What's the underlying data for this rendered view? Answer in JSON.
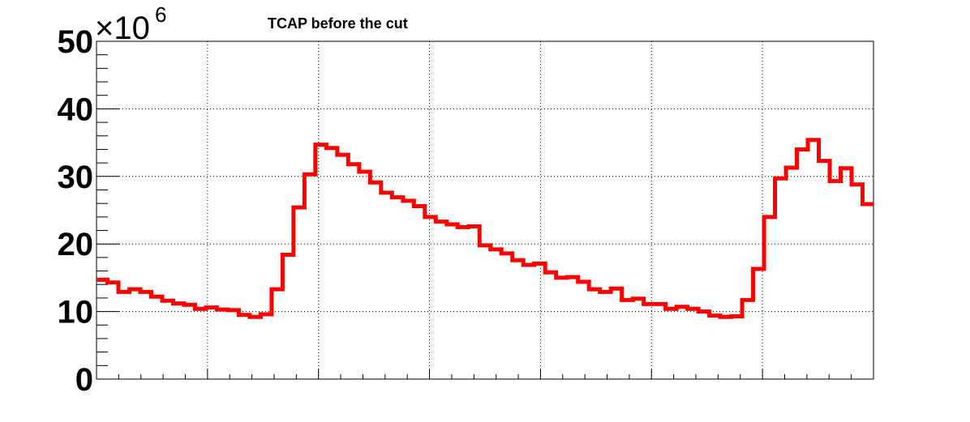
{
  "chart_data": {
    "type": "line",
    "title": "TCAP before the cut",
    "xlabel": "",
    "ylabel": "",
    "y_multiplier": "×10",
    "y_multiplier_exponent": "6",
    "ylim": [
      0,
      50
    ],
    "xlim": [
      0,
      71
    ],
    "yticks": [
      "0",
      "10",
      "20",
      "30",
      "40",
      "50"
    ],
    "grid": true,
    "line_style": "step",
    "colors": {
      "series": "#ff0000",
      "axis": "#000000",
      "grid": "#000000"
    },
    "series": [
      {
        "values": [
          14.7,
          14.3,
          12.9,
          13.3,
          12.9,
          12.2,
          11.6,
          11.2,
          11.0,
          10.4,
          10.6,
          10.3,
          10.2,
          9.5,
          9.2,
          9.6,
          13.3,
          18.4,
          25.4,
          30.3,
          34.7,
          34.2,
          33.2,
          31.8,
          30.7,
          29.1,
          27.6,
          26.9,
          26.4,
          25.6,
          24.0,
          23.3,
          22.9,
          22.5,
          22.6,
          19.8,
          19.2,
          18.6,
          17.6,
          16.9,
          17.1,
          15.8,
          15.0,
          15.1,
          14.4,
          13.3,
          12.9,
          13.4,
          11.7,
          11.9,
          11.1,
          11.1,
          10.4,
          10.7,
          10.4,
          10.0,
          9.4,
          9.2,
          9.3,
          11.7,
          16.3,
          24.0,
          29.7,
          31.3,
          34.0,
          35.4,
          32.3,
          29.3,
          31.2,
          28.8,
          25.9
        ]
      }
    ]
  }
}
